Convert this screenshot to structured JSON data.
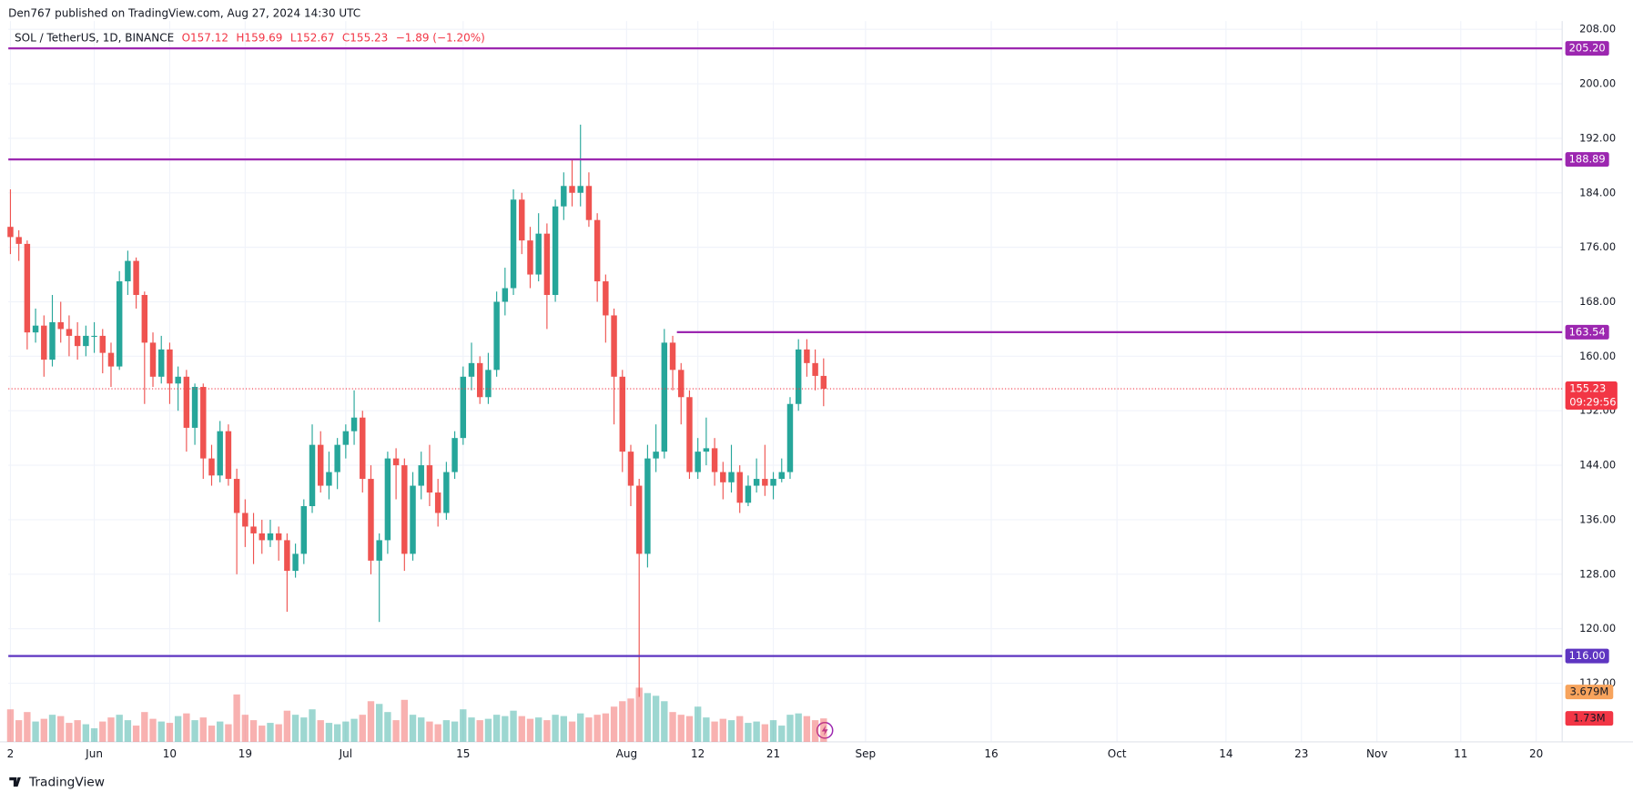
{
  "header": {
    "published": "Den767 published on TradingView.com, Aug 27, 2024 14:30 UTC",
    "footer_logo": "TradingView"
  },
  "chart_data": {
    "type": "candlestick",
    "legend": {
      "symbol": "SOL / TetherUS, 1D, BINANCE",
      "ohlc": [
        "O157.12",
        "H159.69",
        "L152.67",
        "C155.23"
      ],
      "change": "−1.89 (−1.20%)"
    },
    "up_color": "#26a69a",
    "down_color": "#ef5350",
    "xlim": [
      -0.25,
      185.1
    ],
    "ylim": [
      103.4,
      209.2
    ],
    "grid": true,
    "yticks": [
      {
        "value": 112,
        "label": "112.00"
      },
      {
        "value": 120,
        "label": "120.00"
      },
      {
        "value": 128,
        "label": "128.00"
      },
      {
        "value": 136,
        "label": "136.00"
      },
      {
        "value": 144,
        "label": "144.00"
      },
      {
        "value": 152,
        "label": "152.00"
      },
      {
        "value": 160,
        "label": "160.00"
      },
      {
        "value": 168,
        "label": "168.00"
      },
      {
        "value": 176,
        "label": "176.00"
      },
      {
        "value": 184,
        "label": "184.00"
      },
      {
        "value": 192,
        "label": "192.00"
      },
      {
        "value": 200,
        "label": "200.00"
      },
      {
        "value": 208,
        "label": "208.00"
      }
    ],
    "xticks": [
      {
        "value": 0,
        "label": "2"
      },
      {
        "value": 10,
        "label": "Jun"
      },
      {
        "value": 19,
        "label": "10"
      },
      {
        "value": 28,
        "label": "19"
      },
      {
        "value": 40,
        "label": "Jul"
      },
      {
        "value": 54,
        "label": "15"
      },
      {
        "value": 73.5,
        "label": "Aug"
      },
      {
        "value": 82,
        "label": "12"
      },
      {
        "value": 91,
        "label": "21"
      },
      {
        "value": 102,
        "label": "Sep"
      },
      {
        "value": 117,
        "label": "16"
      },
      {
        "value": 132,
        "label": "Oct"
      },
      {
        "value": 145,
        "label": "14"
      },
      {
        "value": 154,
        "label": "23"
      },
      {
        "value": 163,
        "label": "Nov"
      },
      {
        "value": 173,
        "label": "11"
      },
      {
        "value": 182,
        "label": "20"
      }
    ],
    "open": [
      179,
      177.5,
      176.5,
      163.5,
      164.5,
      159.5,
      165,
      164,
      163,
      161.5,
      163,
      163,
      160.5,
      158.5,
      171,
      174,
      169,
      162,
      157,
      161,
      156,
      157,
      149.5,
      155.5,
      145,
      142.5,
      149,
      142,
      137,
      135,
      134,
      133,
      134,
      133,
      128.5,
      131,
      138,
      147,
      141,
      143,
      147,
      149,
      151,
      142,
      130,
      133,
      145,
      144,
      131,
      141,
      144,
      140,
      137,
      143,
      148,
      157,
      159,
      154,
      158,
      168,
      170,
      183,
      177,
      172,
      178,
      169,
      182,
      185,
      184,
      185,
      180,
      171,
      166,
      157,
      146,
      141,
      131,
      145,
      146,
      162,
      158,
      154,
      143,
      146,
      146.5,
      143,
      141.5,
      143,
      138.5,
      141,
      142,
      141,
      142,
      143,
      153,
      161,
      159,
      157.12
    ],
    "high": [
      184.5,
      178.5,
      177,
      167,
      166,
      169,
      168,
      166,
      165,
      164.5,
      165,
      164,
      162,
      172.5,
      175.5,
      174.5,
      169.5,
      163.5,
      163,
      162,
      158.5,
      158,
      156,
      156,
      147,
      150.5,
      150,
      143.5,
      139,
      137,
      136,
      136,
      135,
      134,
      132.5,
      139,
      150,
      149,
      146,
      148,
      150,
      155,
      152,
      144,
      134,
      146,
      146.5,
      145,
      143,
      146,
      147,
      142,
      144.5,
      149,
      158.5,
      162,
      160,
      160.5,
      169.5,
      173,
      184.5,
      184,
      179,
      181,
      179.5,
      183,
      187,
      189,
      194,
      187,
      181,
      172,
      167,
      158,
      147,
      142,
      147,
      150,
      164,
      163,
      159,
      155,
      148,
      151,
      148,
      144.5,
      147,
      144,
      142.5,
      145,
      147,
      143,
      145,
      154,
      162.5,
      162.5,
      161,
      159.69
    ],
    "low": [
      175,
      174,
      161,
      162,
      157,
      158.5,
      162,
      160,
      159.5,
      160,
      160.5,
      157.5,
      155.5,
      158,
      169,
      167,
      153,
      155.5,
      156,
      153,
      152,
      146,
      147,
      142,
      141,
      141.5,
      141,
      128,
      132,
      129.5,
      131,
      132,
      130,
      122.5,
      127.5,
      129.5,
      137,
      140,
      139,
      140.5,
      145,
      147,
      140,
      128,
      121,
      131,
      139,
      128.5,
      130,
      139,
      138,
      135,
      136,
      142,
      147,
      155,
      153,
      153,
      157,
      166,
      169,
      175,
      170,
      171,
      164,
      168,
      180,
      182,
      182,
      179,
      168,
      162,
      150,
      143,
      138,
      110,
      129,
      143,
      145,
      155,
      150,
      142,
      142,
      144,
      141,
      139,
      140,
      137,
      138,
      140,
      139.5,
      139,
      141.5,
      142,
      152,
      157,
      155,
      152.67
    ],
    "close": [
      177.5,
      176.5,
      163.5,
      164.5,
      159.5,
      165,
      164,
      163,
      161.5,
      163,
      163,
      160.5,
      158.5,
      171,
      174,
      169,
      162,
      157,
      161,
      156,
      157,
      149.5,
      155.5,
      145,
      142.5,
      149,
      142,
      137,
      135,
      134,
      133,
      134,
      133,
      128.5,
      131,
      138,
      147,
      141,
      143,
      147,
      149,
      151,
      142,
      130,
      133,
      145,
      144,
      131,
      141,
      144,
      140,
      137,
      143,
      148,
      157,
      159,
      154,
      158,
      168,
      170,
      183,
      177,
      172,
      178,
      169,
      182,
      185,
      184,
      185,
      180,
      171,
      166,
      157,
      146,
      141,
      131,
      145,
      146,
      162,
      158,
      154,
      143,
      146,
      146.5,
      143,
      141.5,
      143,
      138.5,
      141,
      142,
      141,
      142,
      143,
      153,
      161,
      159,
      157.12,
      155.23
    ],
    "volume": [
      2.4,
      1.6,
      2.2,
      1.5,
      1.7,
      2.0,
      1.9,
      1.4,
      1.6,
      1.3,
      1.0,
      1.5,
      1.8,
      2.0,
      1.6,
      1.2,
      2.2,
      1.7,
      1.5,
      1.4,
      1.9,
      2.1,
      1.6,
      1.8,
      1.2,
      1.5,
      1.3,
      3.5,
      2.0,
      1.6,
      1.2,
      1.4,
      1.3,
      2.3,
      2.0,
      1.8,
      2.4,
      1.6,
      1.4,
      1.3,
      1.5,
      1.7,
      2.0,
      3.0,
      2.8,
      2.2,
      1.6,
      3.1,
      2.0,
      1.8,
      1.5,
      1.3,
      1.6,
      1.5,
      2.4,
      1.8,
      1.6,
      1.7,
      2.0,
      1.9,
      2.3,
      1.9,
      1.7,
      1.8,
      1.6,
      2.0,
      1.9,
      1.5,
      2.1,
      1.8,
      2.0,
      2.1,
      2.6,
      3.0,
      3.2,
      4.0,
      3.6,
      3.4,
      3.0,
      2.2,
      2.0,
      1.9,
      2.6,
      1.8,
      1.5,
      1.7,
      1.6,
      1.9,
      1.4,
      1.5,
      1.3,
      1.6,
      1.2,
      2.0,
      2.1,
      1.9,
      1.6,
      1.73
    ],
    "volume_lim": [
      0,
      53.2
    ],
    "volume_tags": [
      {
        "value": 3.679,
        "label": "3.679M",
        "color": "#f7a35c"
      },
      {
        "value": 1.73,
        "label": "1.73M",
        "color": "#f23645"
      }
    ],
    "levels": [
      {
        "value": 205.2,
        "label": "205.20",
        "color": "#9c27b0"
      },
      {
        "value": 188.89,
        "label": "188.89",
        "color": "#9c27b0"
      },
      {
        "value": 163.54,
        "label": "163.54",
        "color": "#9c27b0",
        "start": 79.5
      },
      {
        "value": 116,
        "label": "116.00",
        "color": "#5e35c1"
      }
    ],
    "last_price": {
      "value": 155.23,
      "label": "155.23",
      "countdown": "09:29:56",
      "color": "#f23645"
    }
  }
}
